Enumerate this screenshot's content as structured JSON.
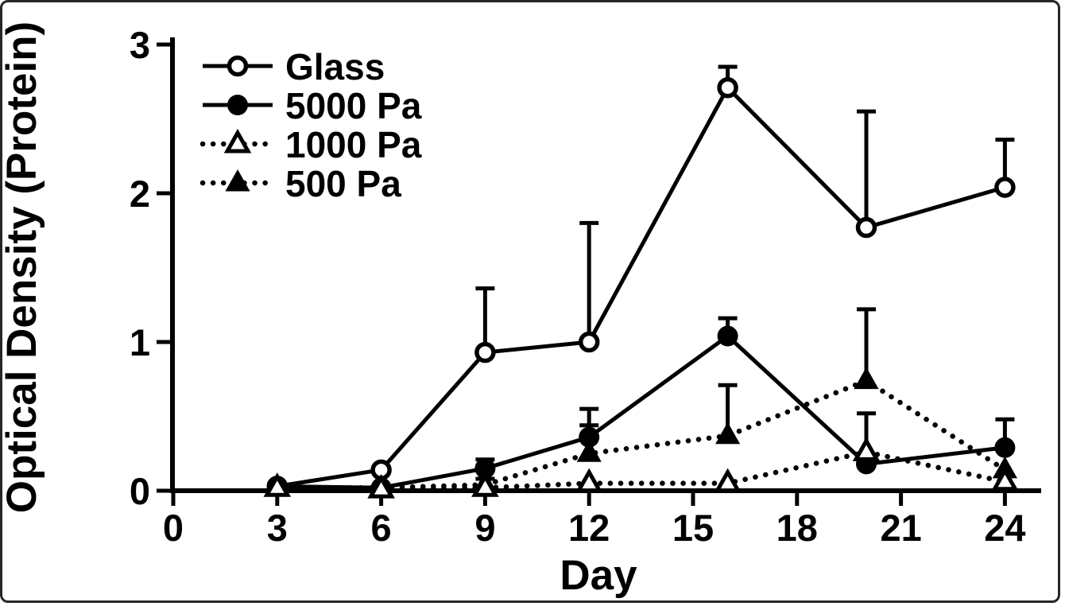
{
  "figure": {
    "background": "#ffffff",
    "border_color": "#262626",
    "ink_color": "#000000"
  },
  "chart_data": {
    "type": "line",
    "title": "",
    "xlabel": "Day",
    "ylabel": "Optical Density  (Protein)",
    "x_ticks": [
      0,
      3,
      6,
      9,
      12,
      15,
      18,
      21,
      24
    ],
    "y_ticks": [
      0,
      1,
      2,
      3
    ],
    "xlim": [
      0,
      25
    ],
    "ylim": [
      0,
      3
    ],
    "grid": false,
    "legend_position": "top-left-inside",
    "error_bars": "upward with caps",
    "x": [
      3,
      6,
      9,
      12,
      16,
      20,
      24
    ],
    "series": [
      {
        "name": "Glass",
        "marker": "open-circle",
        "line": "solid",
        "values": [
          0.03,
          0.14,
          0.93,
          1.0,
          2.71,
          1.77,
          2.04
        ],
        "err_up": [
          0,
          0,
          0.43,
          0.8,
          0.14,
          0.78,
          0.32
        ]
      },
      {
        "name": "5000 Pa",
        "marker": "filled-circle",
        "line": "solid",
        "values": [
          0.03,
          0.02,
          0.15,
          0.36,
          1.04,
          0.18,
          0.29
        ],
        "err_up": [
          0,
          0,
          0.06,
          0.19,
          0.12,
          0,
          0.19
        ]
      },
      {
        "name": "1000 Pa",
        "marker": "open-triangle",
        "line": "dotted",
        "values": [
          0.02,
          0.01,
          0.02,
          0.05,
          0.05,
          0.26,
          0.06
        ],
        "err_up": [
          0,
          0,
          0,
          0,
          0,
          0.26,
          0
        ]
      },
      {
        "name": "500 Pa",
        "marker": "filled-triangle",
        "line": "dotted",
        "values": [
          0.02,
          0.02,
          0.04,
          0.25,
          0.37,
          0.74,
          0.14
        ],
        "err_up": [
          0,
          0,
          0.04,
          0.19,
          0.34,
          0.48,
          0
        ]
      }
    ]
  }
}
